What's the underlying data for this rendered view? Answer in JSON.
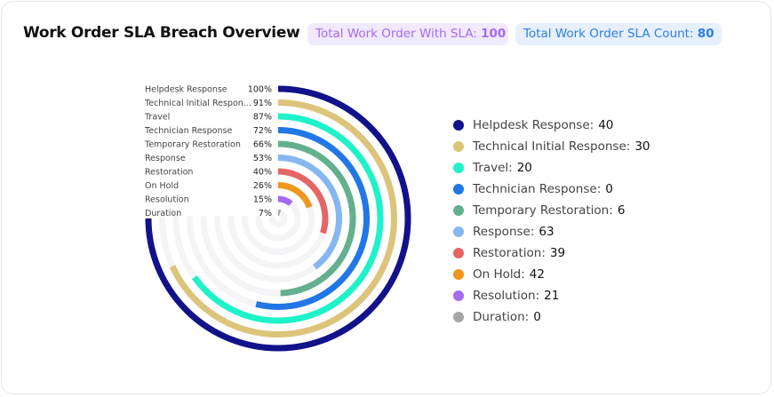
{
  "header": {
    "title": "Work Order SLA Breach Overview",
    "pill_sla_label": "Total Work Order With SLA:",
    "pill_sla_value": "100",
    "pill_count_label": "Total Work Order SLA Count:",
    "pill_count_value": "80"
  },
  "colors": {
    "track": "#f4f4f6",
    "pill_sla_bg": "#f1e9ff",
    "pill_sla_text": "#a26cf0",
    "pill_count_bg": "#e6f0fd",
    "pill_count_text": "#2c7fe0"
  },
  "chart_data": {
    "type": "radial-bar",
    "max": 100,
    "start_angle_deg": -90,
    "sweep_deg": 270,
    "series": [
      {
        "name": "Helpdesk Response",
        "tick_label": "Helpdesk Response",
        "percent": 100,
        "percent_label": "100%",
        "legend_value": "40",
        "color": "#12128a"
      },
      {
        "name": "Technical Initial Response",
        "tick_label": "Technical Initial Respon...",
        "percent": 91,
        "percent_label": "91%",
        "legend_value": "30",
        "color": "#dcc47a"
      },
      {
        "name": "Travel",
        "tick_label": "Travel",
        "percent": 87,
        "percent_label": "87%",
        "legend_value": "20",
        "color": "#1ef2c8"
      },
      {
        "name": "Technician Response",
        "tick_label": "Technician Response",
        "percent": 72,
        "percent_label": "72%",
        "legend_value": "0",
        "color": "#2177e6"
      },
      {
        "name": "Temporary Restoration",
        "tick_label": "Temporary Restoration",
        "percent": 66,
        "percent_label": "66%",
        "legend_value": "6",
        "color": "#63b08f"
      },
      {
        "name": "Response",
        "tick_label": "Response",
        "percent": 53,
        "percent_label": "53%",
        "legend_value": "63",
        "color": "#86b7f1"
      },
      {
        "name": "Restoration",
        "tick_label": "Restoration",
        "percent": 40,
        "percent_label": "40%",
        "legend_value": "39",
        "color": "#e66565"
      },
      {
        "name": "On Hold",
        "tick_label": "On Hold",
        "percent": 26,
        "percent_label": "26%",
        "legend_value": "42",
        "color": "#f0961b"
      },
      {
        "name": "Resolution",
        "tick_label": "Resolution",
        "percent": 15,
        "percent_label": "15%",
        "legend_value": "21",
        "color": "#a66af0"
      },
      {
        "name": "Duration",
        "tick_label": "Duration",
        "percent": 7,
        "percent_label": "7%",
        "legend_value": "0",
        "color": "#a6a6a6"
      }
    ]
  }
}
